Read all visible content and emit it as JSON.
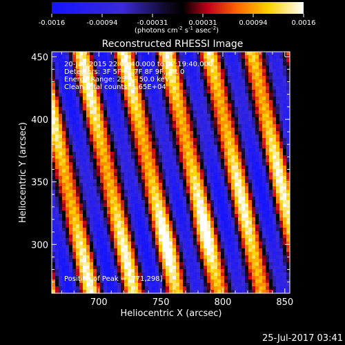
{
  "colorbar": {
    "ticks": [
      "-0.0016",
      "-0.00094",
      "-0.00031",
      "0.00031",
      "0.00094",
      "0.0016"
    ],
    "unit_html": "(photons cm<tspan baseline-shift=\"super\" font-size=\"7\">-2</tspan> s<tspan baseline-shift=\"super\" font-size=\"7\">-1</tspan> asec<tspan baseline-shift=\"super\" font-size=\"7\">-2</tspan>)"
  },
  "chart_data": {
    "type": "heatmap",
    "title": "Reconstructed RHESSI Image",
    "xlabel": "Heliocentric X (arcsec)",
    "ylabel": "Heliocentric Y (arcsec)",
    "xlim": [
      662,
      854
    ],
    "ylim": [
      261,
      454
    ],
    "xticks": [
      700,
      750,
      800,
      850
    ],
    "yticks": [
      300,
      350,
      400,
      450
    ],
    "value_range": [
      -0.0016,
      0.0016
    ],
    "colormap": "rhessi-blue-black-red-yellow-white",
    "peak": [
      771,
      298
    ],
    "stripes": "diagonal fringe pattern, bright bands running from lower-left to upper-right"
  },
  "annotations": {
    "line1": "20-Jan-2015 22:09:40.000 to 22:19:40.000",
    "line2": "Detectors: 3F 5F 6F 7F 8F 9F, Att 0",
    "line3": "Energy Range: 25.0 - 50.0 keV",
    "line4": "Clean    Total counts: 1.65E+04",
    "peak_text": "Position of Peak = [771,298]"
  },
  "footer": {
    "timestamp": "25-Jul-2017 03:41"
  }
}
